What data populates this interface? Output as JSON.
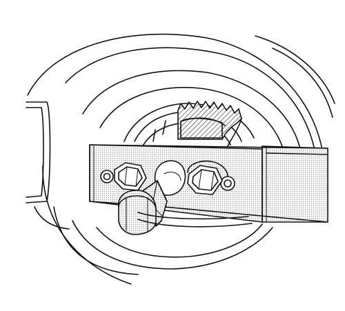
{
  "figure": {
    "subject": "gear-puller-tool-on-hub",
    "colors": {
      "line": "#111111",
      "paper": "#ffffff",
      "shade": "#c8c8c8",
      "hatch": "#555555"
    }
  }
}
